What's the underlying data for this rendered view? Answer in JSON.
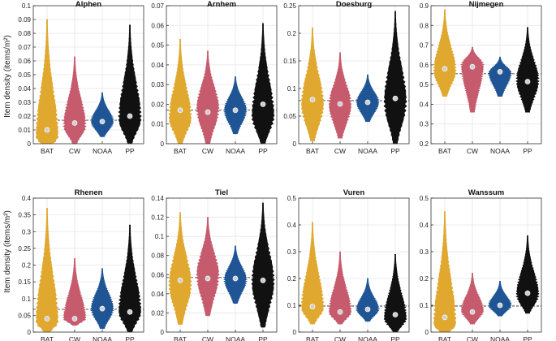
{
  "y_axis_label": "Item density (items/m²)",
  "colors": {
    "BAT": "#E0A82E",
    "CW": "#C75B6E",
    "NOAA": "#1F5595",
    "PP": "#111111",
    "median": "#cfcfcf",
    "reference": "#444444",
    "grid": "#e6e6e6",
    "axis": "#333333"
  },
  "chart_data": [
    {
      "type": "violin",
      "title": "Alphen",
      "categories": [
        "BAT",
        "CW",
        "NOAA",
        "PP"
      ],
      "ylim": [
        0,
        0.1
      ],
      "yticks": [
        "0",
        "0.01",
        "0.02",
        "0.03",
        "0.04",
        "0.05",
        "0.06",
        "0.07",
        "0.08",
        "0.09",
        "0.1"
      ],
      "medians": [
        0.01,
        0.015,
        0.016,
        0.02
      ],
      "mins": [
        0.0,
        0.0,
        0.005,
        0.0
      ],
      "maxs": [
        0.09,
        0.063,
        0.037,
        0.086
      ],
      "peaks": [
        0.005,
        0.013,
        0.016,
        0.018
      ],
      "reference": 0.017
    },
    {
      "type": "violin",
      "title": "Arnhem",
      "categories": [
        "BAT",
        "CW",
        "NOAA",
        "PP"
      ],
      "ylim": [
        0,
        0.07
      ],
      "yticks": [
        "0",
        "0.01",
        "0.02",
        "0.03",
        "0.04",
        "0.05",
        "0.06",
        "0.07"
      ],
      "medians": [
        0.017,
        0.016,
        0.017,
        0.02
      ],
      "mins": [
        0.0,
        0.0,
        0.005,
        0.0
      ],
      "maxs": [
        0.053,
        0.047,
        0.034,
        0.061
      ],
      "peaks": [
        0.013,
        0.018,
        0.017,
        0.014
      ],
      "reference": 0.017
    },
    {
      "type": "violin",
      "title": "Doesburg",
      "categories": [
        "BAT",
        "CW",
        "NOAA",
        "PP"
      ],
      "ylim": [
        0,
        0.25
      ],
      "yticks": [
        "0",
        "0.05",
        "0.1",
        "0.15",
        "0.2",
        "0.25"
      ],
      "medians": [
        0.08,
        0.072,
        0.075,
        0.082
      ],
      "mins": [
        0.005,
        0.01,
        0.04,
        0.0
      ],
      "maxs": [
        0.21,
        0.165,
        0.125,
        0.24
      ],
      "peaks": [
        0.07,
        0.07,
        0.075,
        0.075
      ],
      "reference": 0.078
    },
    {
      "type": "violin",
      "title": "Nijmegen",
      "categories": [
        "BAT",
        "CW",
        "NOAA",
        "PP"
      ],
      "ylim": [
        0.2,
        0.9
      ],
      "yticks": [
        "0.2",
        "0.3",
        "0.4",
        "0.5",
        "0.6",
        "0.7",
        "0.8",
        "0.9"
      ],
      "medians": [
        0.58,
        0.59,
        0.565,
        0.515
      ],
      "mins": [
        0.44,
        0.36,
        0.44,
        0.36
      ],
      "maxs": [
        0.88,
        0.69,
        0.64,
        0.79
      ],
      "peaks": [
        0.57,
        0.6,
        0.56,
        0.52
      ],
      "reference": 0.555
    },
    {
      "type": "violin",
      "title": "Rhenen",
      "categories": [
        "BAT",
        "CW",
        "NOAA",
        "PP"
      ],
      "ylim": [
        0,
        0.4
      ],
      "yticks": [
        "0",
        "0.05",
        "0.1",
        "0.15",
        "0.2",
        "0.25",
        "0.3",
        "0.35",
        "0.4"
      ],
      "medians": [
        0.04,
        0.04,
        0.07,
        0.06
      ],
      "mins": [
        0.0,
        0.02,
        0.01,
        0.0
      ],
      "maxs": [
        0.37,
        0.22,
        0.19,
        0.32
      ],
      "peaks": [
        0.03,
        0.04,
        0.07,
        0.06
      ],
      "reference": 0.068
    },
    {
      "type": "violin",
      "title": "Tiel",
      "categories": [
        "BAT",
        "CW",
        "NOAA",
        "PP"
      ],
      "ylim": [
        0,
        0.14
      ],
      "yticks": [
        "0",
        "0.02",
        "0.04",
        "0.06",
        "0.08",
        "0.1",
        "0.12",
        "0.14"
      ],
      "medians": [
        0.054,
        0.056,
        0.056,
        0.054
      ],
      "mins": [
        0.008,
        0.017,
        0.03,
        0.005
      ],
      "maxs": [
        0.125,
        0.12,
        0.09,
        0.135
      ],
      "peaks": [
        0.05,
        0.06,
        0.055,
        0.052
      ],
      "reference": 0.057
    },
    {
      "type": "violin",
      "title": "Vuren",
      "categories": [
        "BAT",
        "CW",
        "NOAA",
        "PP"
      ],
      "ylim": [
        0,
        0.5
      ],
      "yticks": [
        "0",
        "0.1",
        "0.2",
        "0.3",
        "0.4",
        "0.5"
      ],
      "medians": [
        0.095,
        0.075,
        0.085,
        0.065
      ],
      "mins": [
        0.03,
        0.03,
        0.04,
        0.0
      ],
      "maxs": [
        0.41,
        0.3,
        0.2,
        0.29
      ],
      "peaks": [
        0.09,
        0.075,
        0.085,
        0.05
      ],
      "reference": 0.097
    },
    {
      "type": "violin",
      "title": "Wanssum",
      "categories": [
        "BAT",
        "CW",
        "NOAA",
        "PP"
      ],
      "ylim": [
        0,
        0.5
      ],
      "yticks": [
        "0",
        "0.1",
        "0.2",
        "0.3",
        "0.4",
        "0.5"
      ],
      "medians": [
        0.055,
        0.075,
        0.1,
        0.145
      ],
      "mins": [
        0.0,
        0.03,
        0.06,
        0.07
      ],
      "maxs": [
        0.45,
        0.22,
        0.19,
        0.36
      ],
      "peaks": [
        0.03,
        0.08,
        0.1,
        0.14
      ],
      "reference": 0.097
    }
  ]
}
